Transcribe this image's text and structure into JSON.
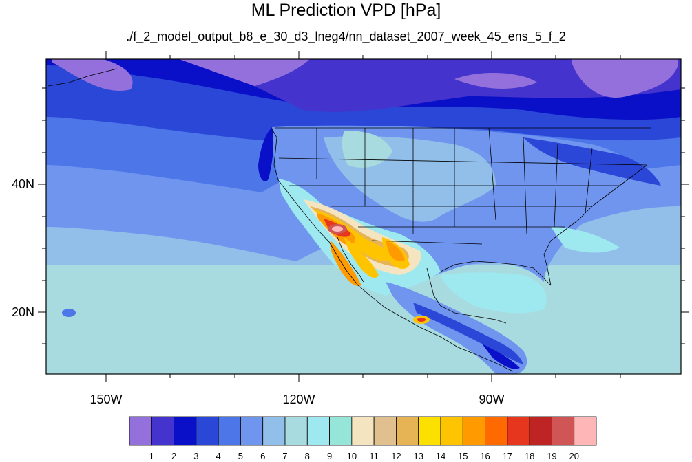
{
  "map": {
    "title": "ML Prediction VPD [hPa]",
    "subtitle": "./f_2_model_output_b8_e_30_d3_lneg4/nn_dataset_2007_week_45_ens_5_f_2",
    "lat_labels": [
      "40N",
      "20N"
    ],
    "lon_labels": [
      "150W",
      "120W",
      "90W"
    ]
  },
  "colorbar": {
    "labels": [
      "1",
      "2",
      "3",
      "4",
      "5",
      "6",
      "7",
      "8",
      "9",
      "10",
      "11",
      "12",
      "13",
      "14",
      "15",
      "16",
      "17",
      "18",
      "19",
      "20"
    ],
    "colors": [
      "#9370db",
      "#4433cc",
      "#0a10c8",
      "#2a47d8",
      "#4d77e8",
      "#6f95ee",
      "#91bfe9",
      "#a8dbe0",
      "#9ee8ef",
      "#95e6d8",
      "#f4e4c0",
      "#e0c08e",
      "#e6b455",
      "#fbe000",
      "#ffc400",
      "#ff9a00",
      "#ff6a00",
      "#e6361e",
      "#bf2424",
      "#d05656",
      "#ffb6b6"
    ]
  }
}
